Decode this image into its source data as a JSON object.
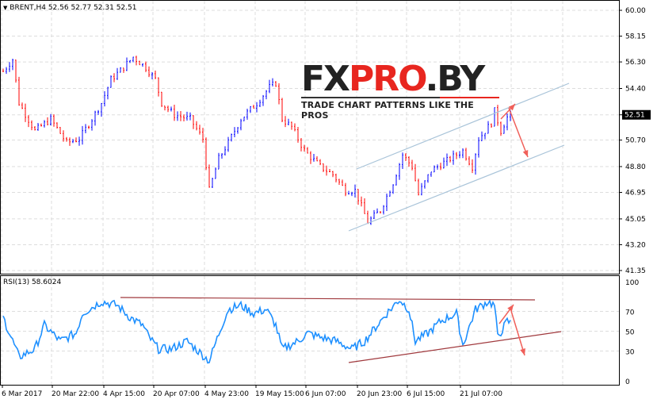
{
  "header": {
    "symbol_info": "BRENT,H4  52.56 52.77 52.31 52.51",
    "dropdown_icon": "triangle-down-icon"
  },
  "rsi_header": "RSI(13) 58.6024",
  "logo": {
    "text_dark1": "FX",
    "text_red": "PRO",
    "text_dark2": ".BY",
    "tagline": "TRADE CHART PATTERNS LIKE THE PROS"
  },
  "colors": {
    "bull": "#0000ff",
    "bear": "#ff0000",
    "rsi": "#1e90ff",
    "channel": "#a9c4d9",
    "rsi_lines": "#a0393d",
    "arrows": "#f0605a",
    "current_price_bg": "#000000"
  },
  "price_axis": {
    "ticks": [
      "60.00",
      "58.15",
      "56.30",
      "54.40",
      "52.51",
      "50.70",
      "48.80",
      "46.95",
      "45.05",
      "43.20",
      "41.35"
    ],
    "current": "52.51"
  },
  "rsi_axis": {
    "ticks": [
      "100",
      "70",
      "50",
      "30",
      "0"
    ]
  },
  "time_axis": {
    "labels": [
      "6 Mar 2017",
      "20 Mar 22:00",
      "4 Apr 15:00",
      "20 Apr 07:00",
      "4 May 23:00",
      "19 May 15:00",
      "6 Jun 07:00",
      "20 Jun 23:00",
      "6 Jul 15:00",
      "21 Jul 07:00"
    ]
  },
  "chart_data": [
    {
      "type": "candlestick",
      "title": "BRENT,H4",
      "ylim": [
        41.35,
        60.0
      ],
      "close_anchors": [
        [
          1,
          55.91
        ],
        [
          3,
          56.48
        ],
        [
          5,
          53.35
        ],
        [
          10,
          51.36
        ],
        [
          15,
          52.21
        ],
        [
          20,
          50.51
        ],
        [
          24,
          50.79
        ],
        [
          28,
          52.21
        ],
        [
          31,
          53.35
        ],
        [
          34,
          55.05
        ],
        [
          38,
          55.91
        ],
        [
          41,
          56.65
        ],
        [
          45,
          55.91
        ],
        [
          48,
          55.05
        ],
        [
          50,
          53.35
        ],
        [
          54,
          52.5
        ],
        [
          59,
          52.21
        ],
        [
          63,
          50.79
        ],
        [
          65,
          47.09
        ],
        [
          68,
          49.37
        ],
        [
          71,
          50.51
        ],
        [
          75,
          52.21
        ],
        [
          80,
          53.35
        ],
        [
          84,
          54.49
        ],
        [
          86,
          54.77
        ],
        [
          88,
          52.21
        ],
        [
          91,
          51.64
        ],
        [
          95,
          49.94
        ],
        [
          100,
          48.8
        ],
        [
          104,
          48.23
        ],
        [
          108,
          47.09
        ],
        [
          111,
          47.09
        ],
        [
          115,
          44.82
        ],
        [
          119,
          45.67
        ],
        [
          123,
          47.66
        ],
        [
          126,
          49.65
        ],
        [
          129,
          48.8
        ],
        [
          131,
          46.81
        ],
        [
          135,
          48.52
        ],
        [
          139,
          49.08
        ],
        [
          143,
          49.65
        ],
        [
          145,
          49.94
        ],
        [
          148,
          48.8
        ],
        [
          150,
          50.79
        ],
        [
          154,
          51.93
        ],
        [
          155,
          52.78
        ],
        [
          157,
          51.36
        ],
        [
          159,
          52.33
        ],
        [
          160,
          52.51
        ]
      ]
    },
    {
      "type": "line",
      "title": "RSI(13) 58.6024",
      "ylim": [
        0,
        100
      ],
      "anchors": [
        [
          1,
          56
        ],
        [
          5,
          24
        ],
        [
          10,
          32
        ],
        [
          13,
          56
        ],
        [
          18,
          40
        ],
        [
          23,
          48
        ],
        [
          25,
          68
        ],
        [
          29,
          76
        ],
        [
          31,
          80
        ],
        [
          36,
          76
        ],
        [
          40,
          64
        ],
        [
          44,
          56
        ],
        [
          46,
          44
        ],
        [
          49,
          32
        ],
        [
          53,
          32
        ],
        [
          58,
          40
        ],
        [
          65,
          20
        ],
        [
          69,
          56
        ],
        [
          71,
          72
        ],
        [
          75,
          76
        ],
        [
          79,
          68
        ],
        [
          83,
          72
        ],
        [
          86,
          56
        ],
        [
          88,
          32
        ],
        [
          93,
          40
        ],
        [
          96,
          48
        ],
        [
          100,
          44
        ],
        [
          105,
          40
        ],
        [
          110,
          32
        ],
        [
          114,
          40
        ],
        [
          118,
          56
        ],
        [
          121,
          68
        ],
        [
          125,
          82
        ],
        [
          128,
          72
        ],
        [
          130,
          40
        ],
        [
          134,
          48
        ],
        [
          138,
          60
        ],
        [
          143,
          68
        ],
        [
          145,
          36
        ],
        [
          149,
          72
        ],
        [
          153,
          80
        ],
        [
          155,
          76
        ],
        [
          156,
          44
        ],
        [
          159,
          60
        ],
        [
          160,
          58.6
        ]
      ]
    }
  ]
}
